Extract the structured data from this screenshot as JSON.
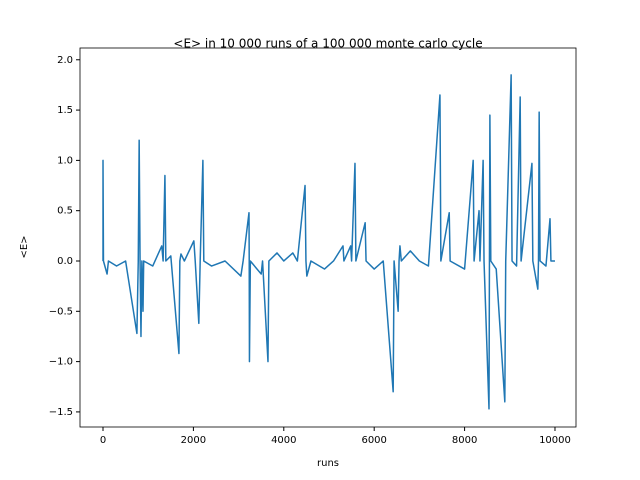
{
  "chart_data": {
    "type": "line",
    "title": "<E> in 10 000 runs of a 100 000 monte carlo cycle",
    "xlabel": "runs",
    "ylabel": "<E>",
    "series": [
      {
        "name": "<E>",
        "color": "#1f77b4",
        "x": [
          0,
          0,
          10,
          90,
          120,
          300,
          500,
          750,
          780,
          800,
          820,
          840,
          860,
          885,
          900,
          1100,
          1300,
          1330,
          1370,
          1390,
          1500,
          1680,
          1700,
          1725,
          1800,
          2010,
          2040,
          2120,
          2150,
          2210,
          2230,
          2400,
          2700,
          3050,
          3100,
          3230,
          3235,
          3240,
          3260,
          3500,
          3530,
          3650,
          3670,
          3850,
          4000,
          4200,
          4300,
          4470,
          4490,
          4510,
          4600,
          4900,
          5100,
          5310,
          5330,
          5480,
          5500,
          5575,
          5595,
          5800,
          5820,
          6000,
          6200,
          6420,
          6440,
          6530,
          6550,
          6570,
          6600,
          6800,
          7000,
          7200,
          7455,
          7475,
          7660,
          7680,
          8000,
          8190,
          8210,
          8320,
          8340,
          8410,
          8430,
          8540,
          8550,
          8560,
          8580,
          8700,
          8890,
          8910,
          9030,
          9050,
          9150,
          9230,
          9250,
          9490,
          9510,
          9620,
          9635,
          9650,
          9670,
          9800,
          9890,
          9910,
          10000
        ],
        "values": [
          0,
          1.0,
          0,
          -0.13,
          0,
          -0.05,
          0,
          -0.72,
          0,
          1.2,
          0,
          -0.75,
          0,
          -0.5,
          0,
          -0.05,
          0.15,
          0,
          0.85,
          0,
          0.05,
          -0.92,
          0,
          0.07,
          0,
          0.2,
          0,
          -0.62,
          0,
          1.0,
          0,
          -0.05,
          0,
          -0.15,
          0,
          0.48,
          0,
          -1.0,
          0,
          -0.13,
          0,
          -1.0,
          0,
          0.08,
          0,
          0.08,
          0,
          0.75,
          0,
          -0.15,
          0,
          -0.08,
          0,
          0.15,
          0,
          0.15,
          0,
          0.97,
          0,
          0.38,
          0,
          -0.08,
          0,
          -1.3,
          0,
          -0.5,
          0,
          0.15,
          0,
          0.1,
          0,
          -0.05,
          1.65,
          0,
          0.48,
          0,
          -0.08,
          1.0,
          0,
          0.5,
          0,
          1.0,
          0,
          -1.47,
          0,
          1.45,
          0,
          -0.08,
          -1.4,
          0,
          1.85,
          0,
          -0.05,
          1.63,
          0,
          0.97,
          0,
          -0.28,
          0,
          1.48,
          0,
          -0.05,
          0.42,
          0,
          0
        ]
      }
    ],
    "xlim": [
      -509,
      10465
    ],
    "ylim": [
      -1.65,
      2.117
    ],
    "xticks": [
      0,
      2000,
      4000,
      6000,
      8000,
      10000
    ],
    "yticks": [
      {
        "value": -1.5,
        "label": "−1.5"
      },
      {
        "value": -1.0,
        "label": "−1.0"
      },
      {
        "value": -0.5,
        "label": "−0.5"
      },
      {
        "value": 0,
        "label": "0.0"
      },
      {
        "value": 0.5,
        "label": "0.5"
      },
      {
        "value": 1.0,
        "label": "1.0"
      },
      {
        "value": 1.5,
        "label": "1.5"
      },
      {
        "value": 2.0,
        "label": "2.0"
      }
    ]
  }
}
